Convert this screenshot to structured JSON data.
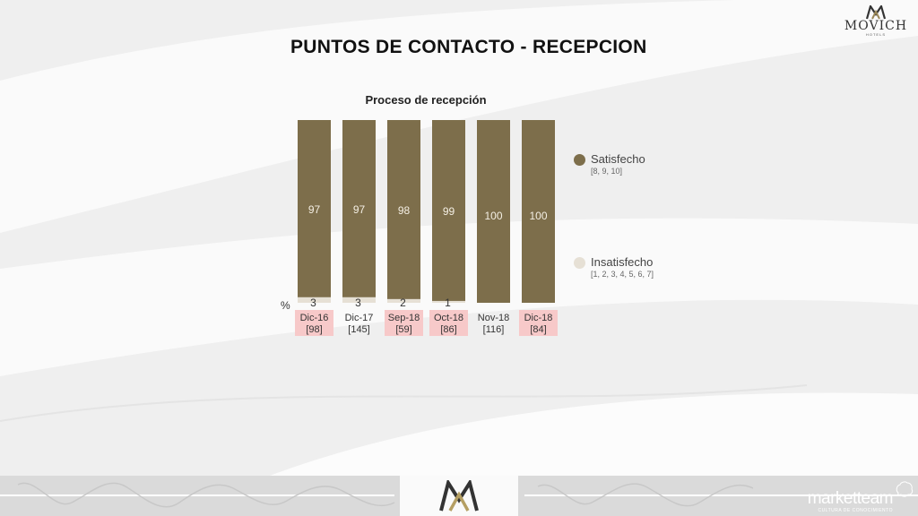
{
  "brand": {
    "name": "MOVICH",
    "sub": "HOTELS"
  },
  "page_title": "PUNTOS DE CONTACTO - RECEPCION",
  "chart_data": {
    "type": "bar",
    "title": "Proceso de recepción",
    "unit_label": "%",
    "categories": [
      "Dic-16",
      "Dic-17",
      "Sep-18",
      "Oct-18",
      "Nov-18",
      "Dic-18"
    ],
    "sample_sizes": [
      "[98]",
      "[145]",
      "[59]",
      "[86]",
      "[116]",
      "[84]"
    ],
    "highlighted": [
      true,
      false,
      true,
      true,
      false,
      true
    ],
    "series": [
      {
        "name": "Satisfecho",
        "note": "[8, 9, 10]",
        "color": "#7d6e4b",
        "values": [
          97,
          97,
          98,
          99,
          100,
          100
        ]
      },
      {
        "name": "Insatisfecho",
        "note": "[1, 2, 3, 4, 5, 6, 7]",
        "color": "#e6e0d5",
        "values": [
          3,
          3,
          2,
          1,
          null,
          null
        ]
      }
    ],
    "ylim": [
      0,
      100
    ],
    "stacked": true,
    "legend_position": "right"
  },
  "footer": {
    "company": "marketteam",
    "tagline": "CULTURA DE CONOCIMIENTO"
  },
  "colors": {
    "highlight": "#f7c9c9",
    "bar": "#7d6e4b",
    "bar_low": "#e6e0d5"
  }
}
